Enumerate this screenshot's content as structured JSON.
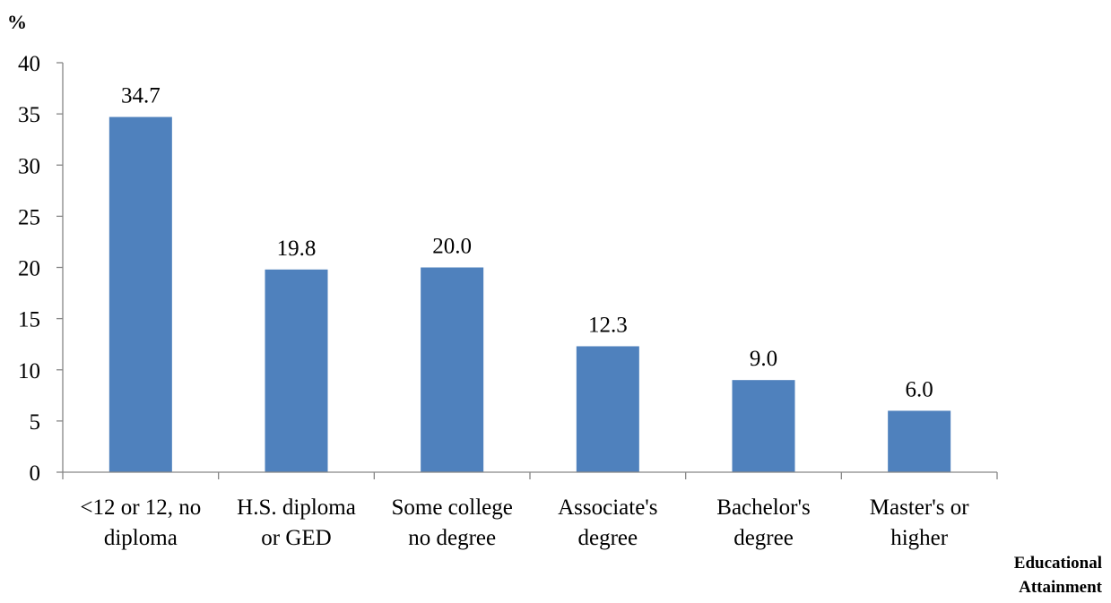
{
  "chart_data": {
    "type": "bar",
    "ylabel": "%",
    "xlabel": [
      "Educational",
      "Attainment"
    ],
    "ylim": [
      0,
      40
    ],
    "yticks": [
      0,
      5,
      10,
      15,
      20,
      25,
      30,
      35,
      40
    ],
    "grid": false,
    "categories": [
      [
        "<12 or 12, no",
        "diploma"
      ],
      [
        "H.S. diploma",
        "or GED"
      ],
      [
        "Some college",
        "no degree"
      ],
      [
        "Associate's",
        "degree"
      ],
      [
        "Bachelor's",
        "degree"
      ],
      [
        "Master's or",
        "higher"
      ]
    ],
    "values": [
      34.7,
      19.8,
      20.0,
      12.3,
      9.0,
      6.0
    ],
    "value_labels": [
      "34.7",
      "19.8",
      "20.0",
      "12.3",
      "9.0",
      "6.0"
    ],
    "bar_color": "#4F81BD",
    "axis_color": "#868686"
  }
}
